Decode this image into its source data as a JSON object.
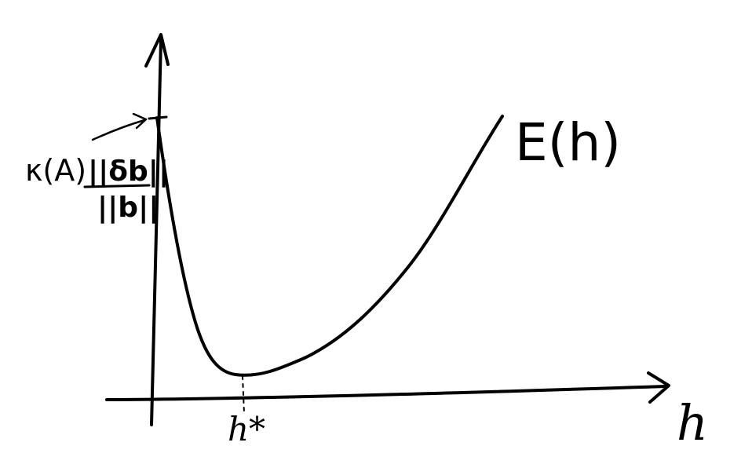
{
  "curve_label": "E(h)",
  "x_axis_label": "h",
  "minimizer_label": "h*",
  "y_intercept_label": {
    "prefix": "κ(A)",
    "numerator": "||δb||",
    "denominator": "||b||"
  },
  "ink_color": "#000000",
  "background_color": "#ffffff"
}
